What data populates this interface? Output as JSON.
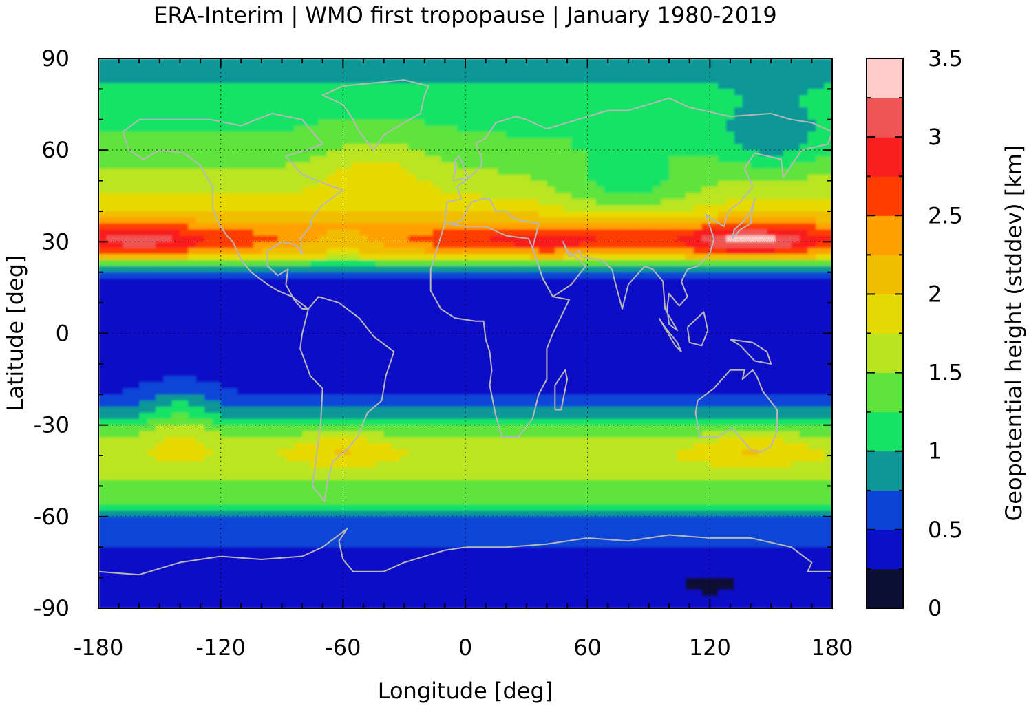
{
  "chart_data": {
    "type": "heatmap",
    "title": "ERA-Interim | WMO first tropopause | January 1980-2019",
    "xlabel": "Longitude [deg]",
    "ylabel": "Latitude [deg]",
    "colorbar_label": "Geopotential height (stddev) [km]",
    "xlim": [
      -180,
      180
    ],
    "ylim": [
      -90,
      90
    ],
    "x_ticks": [
      "-180",
      "-120",
      "-60",
      "0",
      "60",
      "120",
      "180"
    ],
    "x_tick_values": [
      -180,
      -120,
      -60,
      0,
      60,
      120,
      180
    ],
    "y_ticks": [
      "90",
      "60",
      "30",
      "0",
      "-30",
      "-60",
      "-90"
    ],
    "y_tick_values": [
      90,
      60,
      30,
      0,
      -30,
      -60,
      -90
    ],
    "grid": true,
    "colorbar": {
      "range": [
        0,
        3.5
      ],
      "ticks": [
        "0",
        "0.5",
        "1",
        "1.5",
        "2",
        "2.5",
        "3",
        "3.5"
      ],
      "tick_values": [
        0,
        0.5,
        1,
        1.5,
        2,
        2.5,
        3,
        3.5
      ],
      "levels": [
        0,
        0.25,
        0.5,
        0.75,
        1.0,
        1.25,
        1.5,
        1.75,
        2.0,
        2.25,
        2.5,
        2.75,
        3.0,
        3.25,
        3.5
      ],
      "colors": [
        "#0b0e35",
        "#0a10c8",
        "#0c44d8",
        "#0f9797",
        "#16e366",
        "#5fe33d",
        "#b9e520",
        "#e6da05",
        "#f1bd00",
        "#ffa100",
        "#ff3d00",
        "#fa1f1f",
        "#f05555",
        "#ffcbcb"
      ]
    },
    "zonal_profile": {
      "lat": [
        90,
        85,
        80,
        75,
        70,
        65,
        60,
        55,
        50,
        45,
        40,
        35,
        32,
        30,
        27,
        25,
        22,
        20,
        15,
        10,
        5,
        0,
        -5,
        -10,
        -15,
        -20,
        -25,
        -28,
        -30,
        -35,
        -40,
        -45,
        -50,
        -55,
        -58,
        -60,
        -63,
        -65,
        -70,
        -75,
        -80,
        -85,
        -90
      ],
      "stddev_km": [
        0.8,
        0.95,
        1.05,
        1.15,
        1.2,
        1.25,
        1.3,
        1.45,
        1.6,
        1.75,
        1.95,
        2.4,
        2.6,
        2.65,
        2.3,
        1.9,
        1.0,
        0.6,
        0.4,
        0.35,
        0.3,
        0.3,
        0.3,
        0.32,
        0.38,
        0.5,
        0.75,
        0.95,
        1.2,
        1.55,
        1.7,
        1.6,
        1.45,
        1.3,
        1.05,
        0.8,
        0.6,
        0.55,
        0.5,
        0.48,
        0.45,
        0.42,
        0.42
      ]
    },
    "features": [
      {
        "lon": -160,
        "lat": 32,
        "stddev_km": 3.2
      },
      {
        "lon": 30,
        "lat": 30,
        "stddev_km": 2.9
      },
      {
        "lon": 135,
        "lat": 32,
        "stddev_km": 3.4
      },
      {
        "lon": 60,
        "lat": 45,
        "stddev_km": 0.8
      },
      {
        "lon": 145,
        "lat": 62,
        "stddev_km": 0.85
      },
      {
        "lon": -60,
        "lat": -38,
        "stddev_km": 2.2
      },
      {
        "lon": 140,
        "lat": -40,
        "stddev_km": 2.2
      },
      {
        "lon": 150,
        "lat": 15,
        "stddev_km": 0.15
      },
      {
        "lon": 145,
        "lat": -22,
        "stddev_km": 0.15
      },
      {
        "lon": 120,
        "lat": -82,
        "stddev_km": 0.3
      }
    ]
  }
}
